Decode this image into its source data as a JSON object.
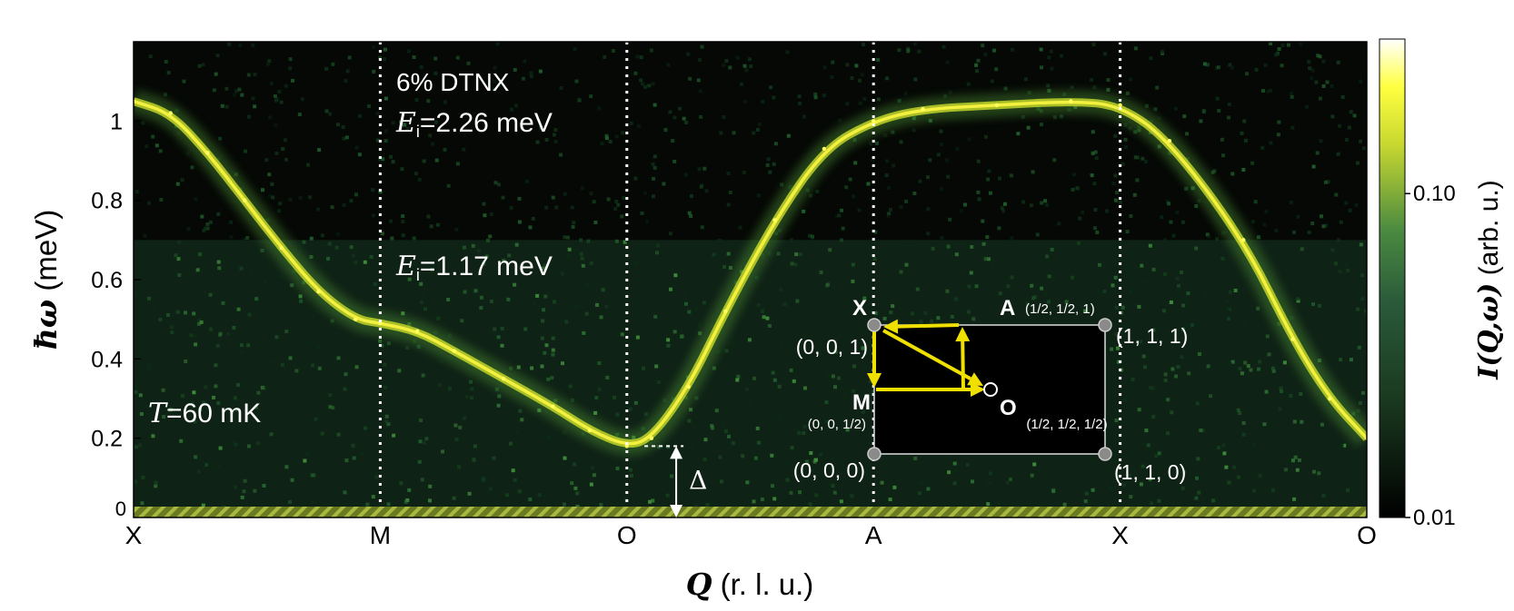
{
  "chart_data": {
    "type": "heatmap",
    "title": "",
    "sample_label": "6% DTNX",
    "ei_high": {
      "symbol": "E",
      "subscript": "i",
      "text": "=2.26 meV"
    },
    "ei_low": {
      "symbol": "E",
      "subscript": "i",
      "text": "=1.17 meV"
    },
    "temperature": {
      "symbol": "T",
      "text": "=60 mK"
    },
    "gap_label": "Δ",
    "ylabel": {
      "symbol": "ħω",
      "text": " (meV)"
    },
    "xlabel": {
      "symbol": "Q",
      "text": " (r. l. u.)"
    },
    "ylim": [
      0,
      1.2
    ],
    "xlim": [
      0,
      5
    ],
    "y_ticks": [
      {
        "v": 0,
        "label": "0"
      },
      {
        "v": 0.2,
        "label": "0.2"
      },
      {
        "v": 0.4,
        "label": "0.4"
      },
      {
        "v": 0.6,
        "label": "0.6"
      },
      {
        "v": 0.8,
        "label": "0.8"
      },
      {
        "v": 1.0,
        "label": "1"
      }
    ],
    "x_ticks": [
      {
        "v": 0,
        "label": "X"
      },
      {
        "v": 1,
        "label": "M"
      },
      {
        "v": 2,
        "label": "O"
      },
      {
        "v": 3,
        "label": "A"
      },
      {
        "v": 4,
        "label": "X"
      },
      {
        "v": 5,
        "label": "O"
      }
    ],
    "dotted_lines_x": [
      1,
      2,
      3,
      4
    ],
    "ei_boundary_energy": 0.7,
    "gap": {
      "x": 2.2,
      "energy": 0.18
    },
    "dispersion": {
      "x": [
        0,
        0.15,
        0.3,
        0.45,
        0.6,
        0.75,
        0.9,
        1.0,
        1.15,
        1.3,
        1.5,
        1.7,
        1.85,
        2.0,
        2.1,
        2.25,
        2.4,
        2.6,
        2.8,
        3.0,
        3.2,
        3.5,
        3.8,
        4.0,
        4.2,
        4.5,
        4.7,
        4.85,
        5.0
      ],
      "energy": [
        1.05,
        1.02,
        0.92,
        0.8,
        0.68,
        0.57,
        0.5,
        0.49,
        0.47,
        0.42,
        0.35,
        0.28,
        0.22,
        0.18,
        0.2,
        0.33,
        0.52,
        0.75,
        0.93,
        1.0,
        1.03,
        1.04,
        1.05,
        1.04,
        0.95,
        0.7,
        0.45,
        0.3,
        0.2
      ]
    },
    "colorbar": {
      "label": {
        "symbol": "I(Q,ω)",
        "text": " (arb. u.)"
      },
      "scale": "log",
      "range": [
        0.01,
        0.3
      ],
      "ticks": [
        {
          "v": 0.1,
          "label": "0.10"
        },
        {
          "v": 0.01,
          "label": "0.01"
        }
      ],
      "colors": [
        "#000000",
        "#1a3a20",
        "#2a5a3a",
        "#4a8a40",
        "#c8d830",
        "#ffff40",
        "#ffffff"
      ]
    },
    "inset": {
      "corners": [
        {
          "label": "(0, 0, 1)"
        },
        {
          "label": "(1, 1, 1)"
        },
        {
          "label": "(0, 0, 0)"
        },
        {
          "label": "(1, 1, 0)"
        }
      ],
      "points": [
        {
          "letter": "X",
          "coord": ""
        },
        {
          "letter": "A",
          "coord": "(1/2, 1/2, 1)"
        },
        {
          "letter": "M",
          "coord": "(0, 0, 1/2)"
        },
        {
          "letter": "O",
          "coord": "(1/2, 1/2, 1/2)"
        }
      ],
      "path_color": "#f0e000"
    }
  }
}
